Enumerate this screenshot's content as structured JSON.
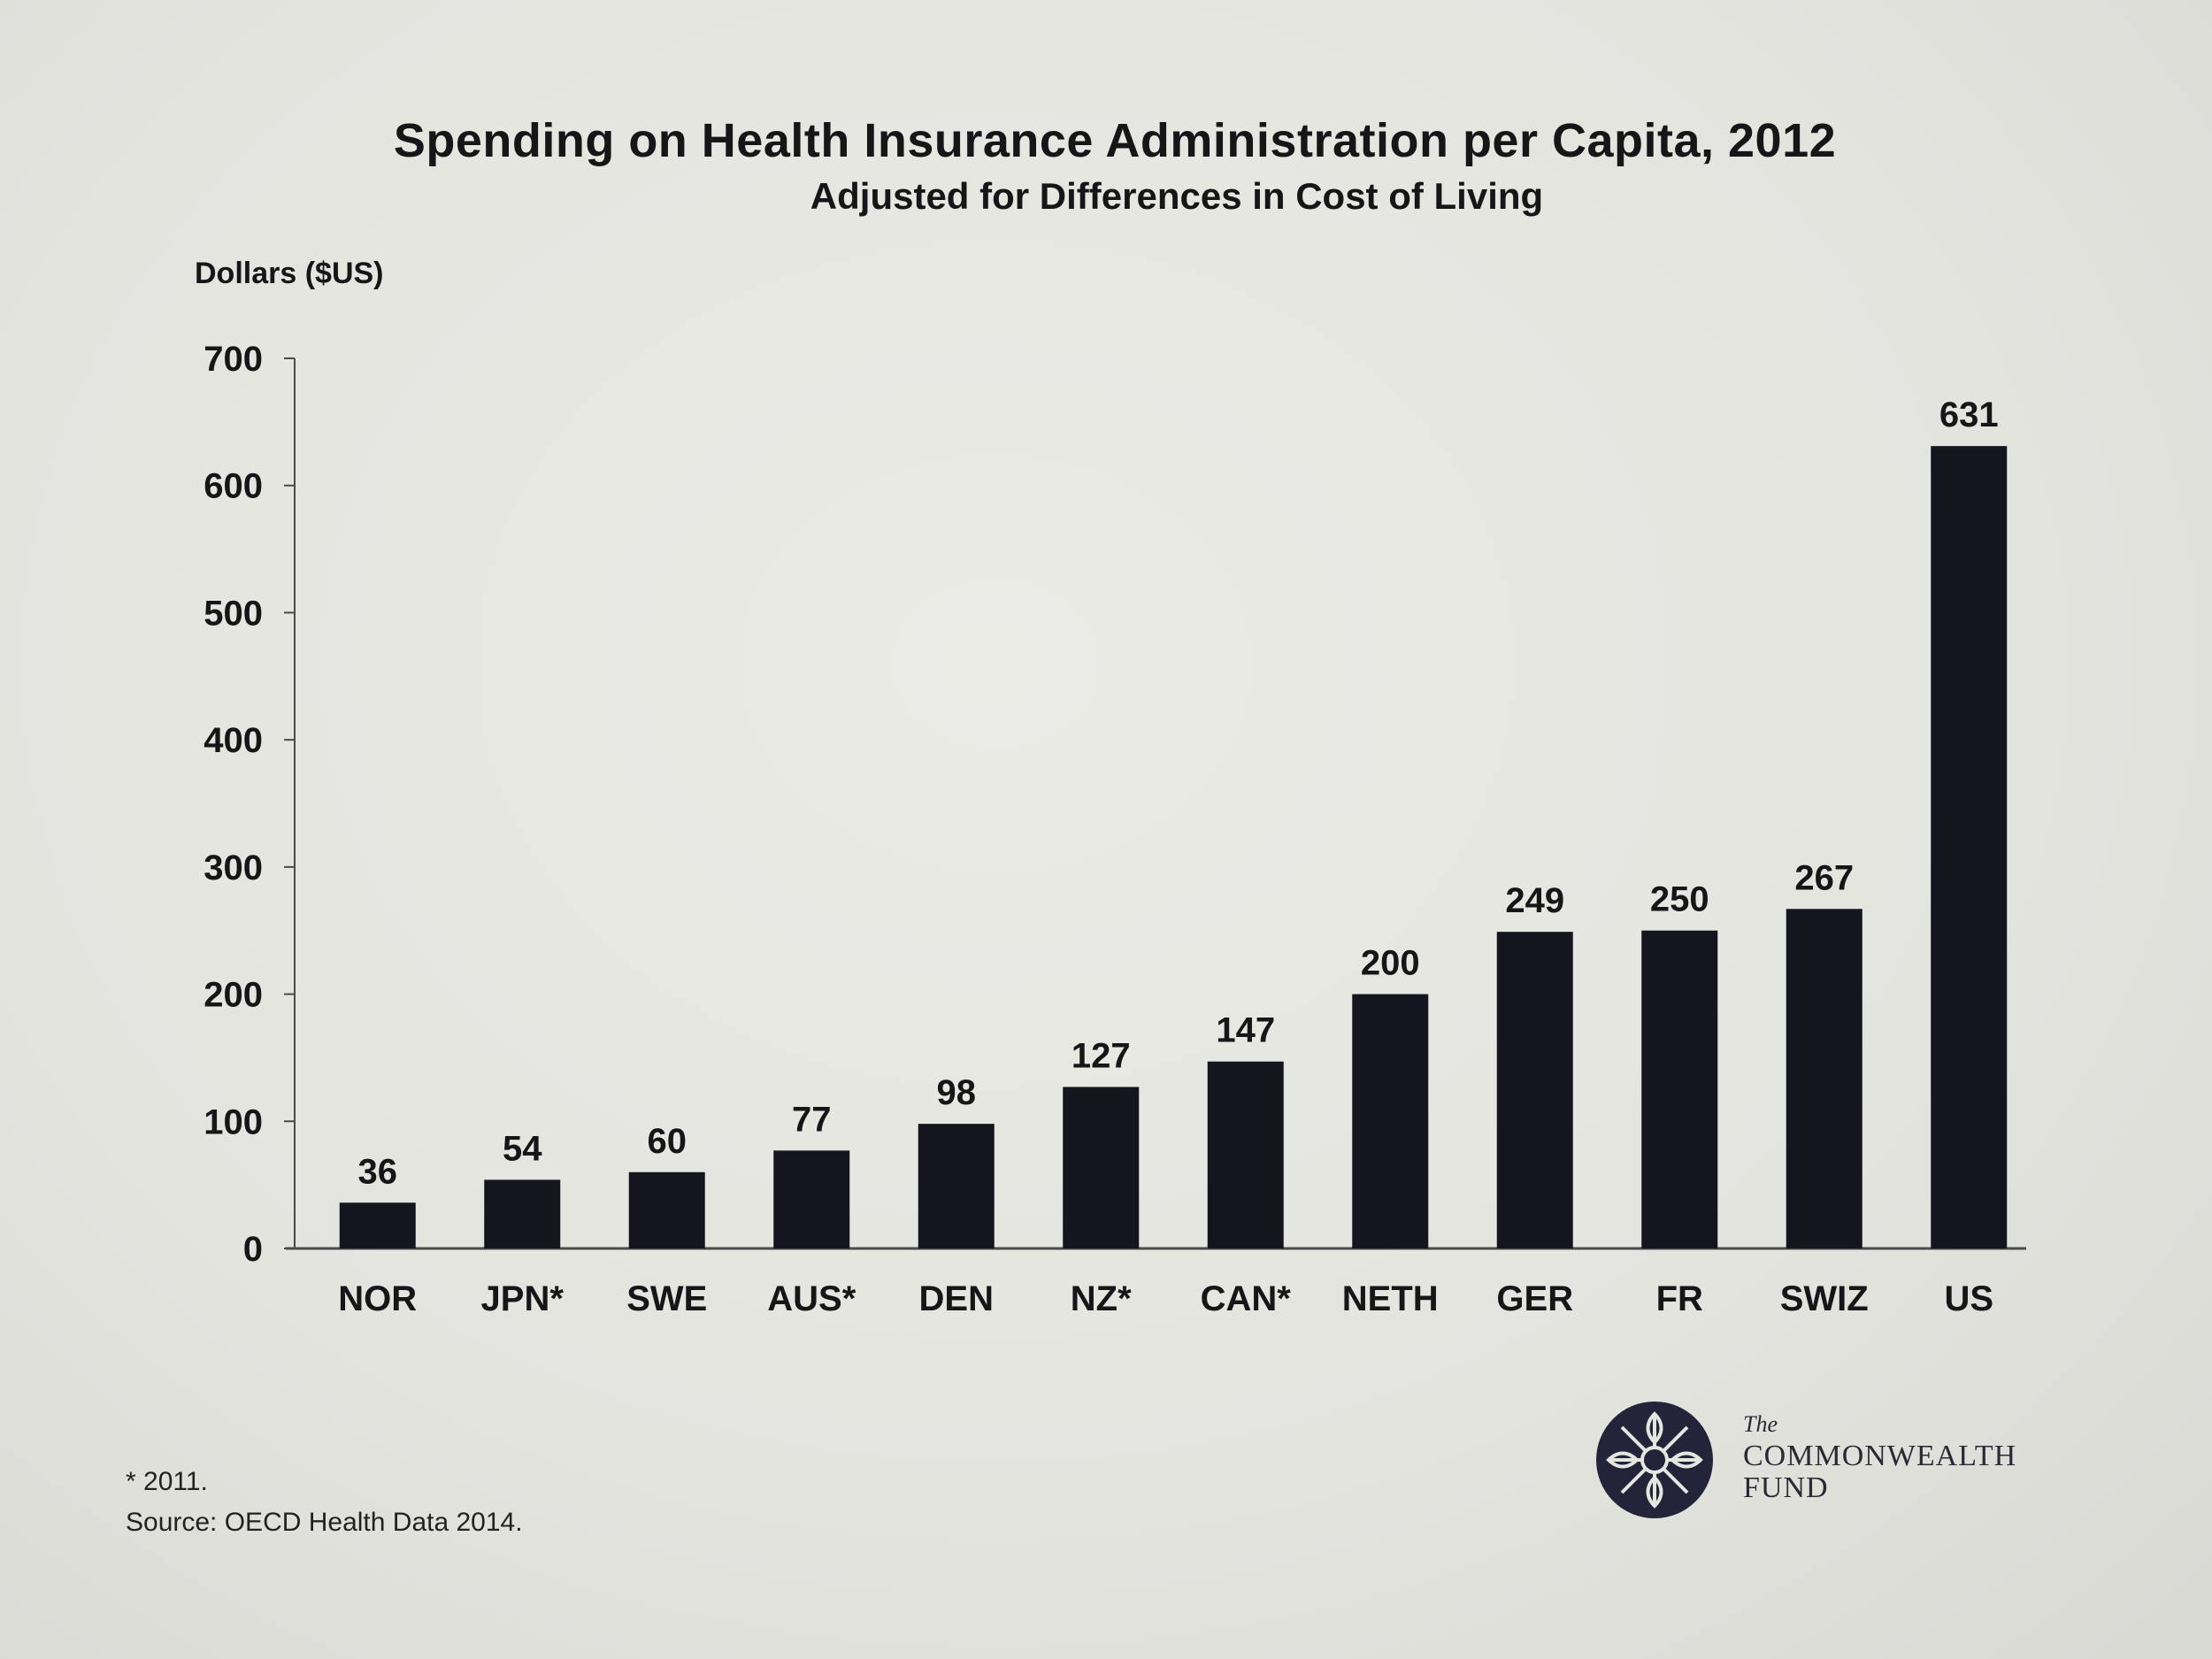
{
  "colors": {
    "background": "#e6e6e1",
    "bar": "#15151f",
    "text": "#161619",
    "axis": "#4a4a4a"
  },
  "footnote": {
    "note": "* 2011.",
    "source": "Source: OECD Health Data 2014."
  },
  "logo": {
    "icon": "commonwealth-fund-wheel-icon",
    "the": "The",
    "name_line1": "COMMONWEALTH",
    "name_line2": "FUND"
  },
  "chart_data": {
    "type": "bar",
    "title": "Spending on Health Insurance Administration per Capita, 2012",
    "subtitle": "Adjusted for Differences in Cost of Living",
    "ylabel": "Dollars ($US)",
    "xlabel": "",
    "ylim": [
      0,
      700
    ],
    "yticks": [
      0,
      100,
      200,
      300,
      400,
      500,
      600,
      700
    ],
    "grid": false,
    "categories": [
      "NOR",
      "JPN*",
      "SWE",
      "AUS*",
      "DEN",
      "NZ*",
      "CAN*",
      "NETH",
      "GER",
      "FR",
      "SWIZ",
      "US"
    ],
    "values": [
      36,
      54,
      60,
      77,
      98,
      127,
      147,
      200,
      249,
      250,
      267,
      631
    ],
    "data_labels": [
      "36",
      "54",
      "60",
      "77",
      "98",
      "127",
      "147",
      "200",
      "249",
      "250",
      "267",
      "631"
    ]
  }
}
